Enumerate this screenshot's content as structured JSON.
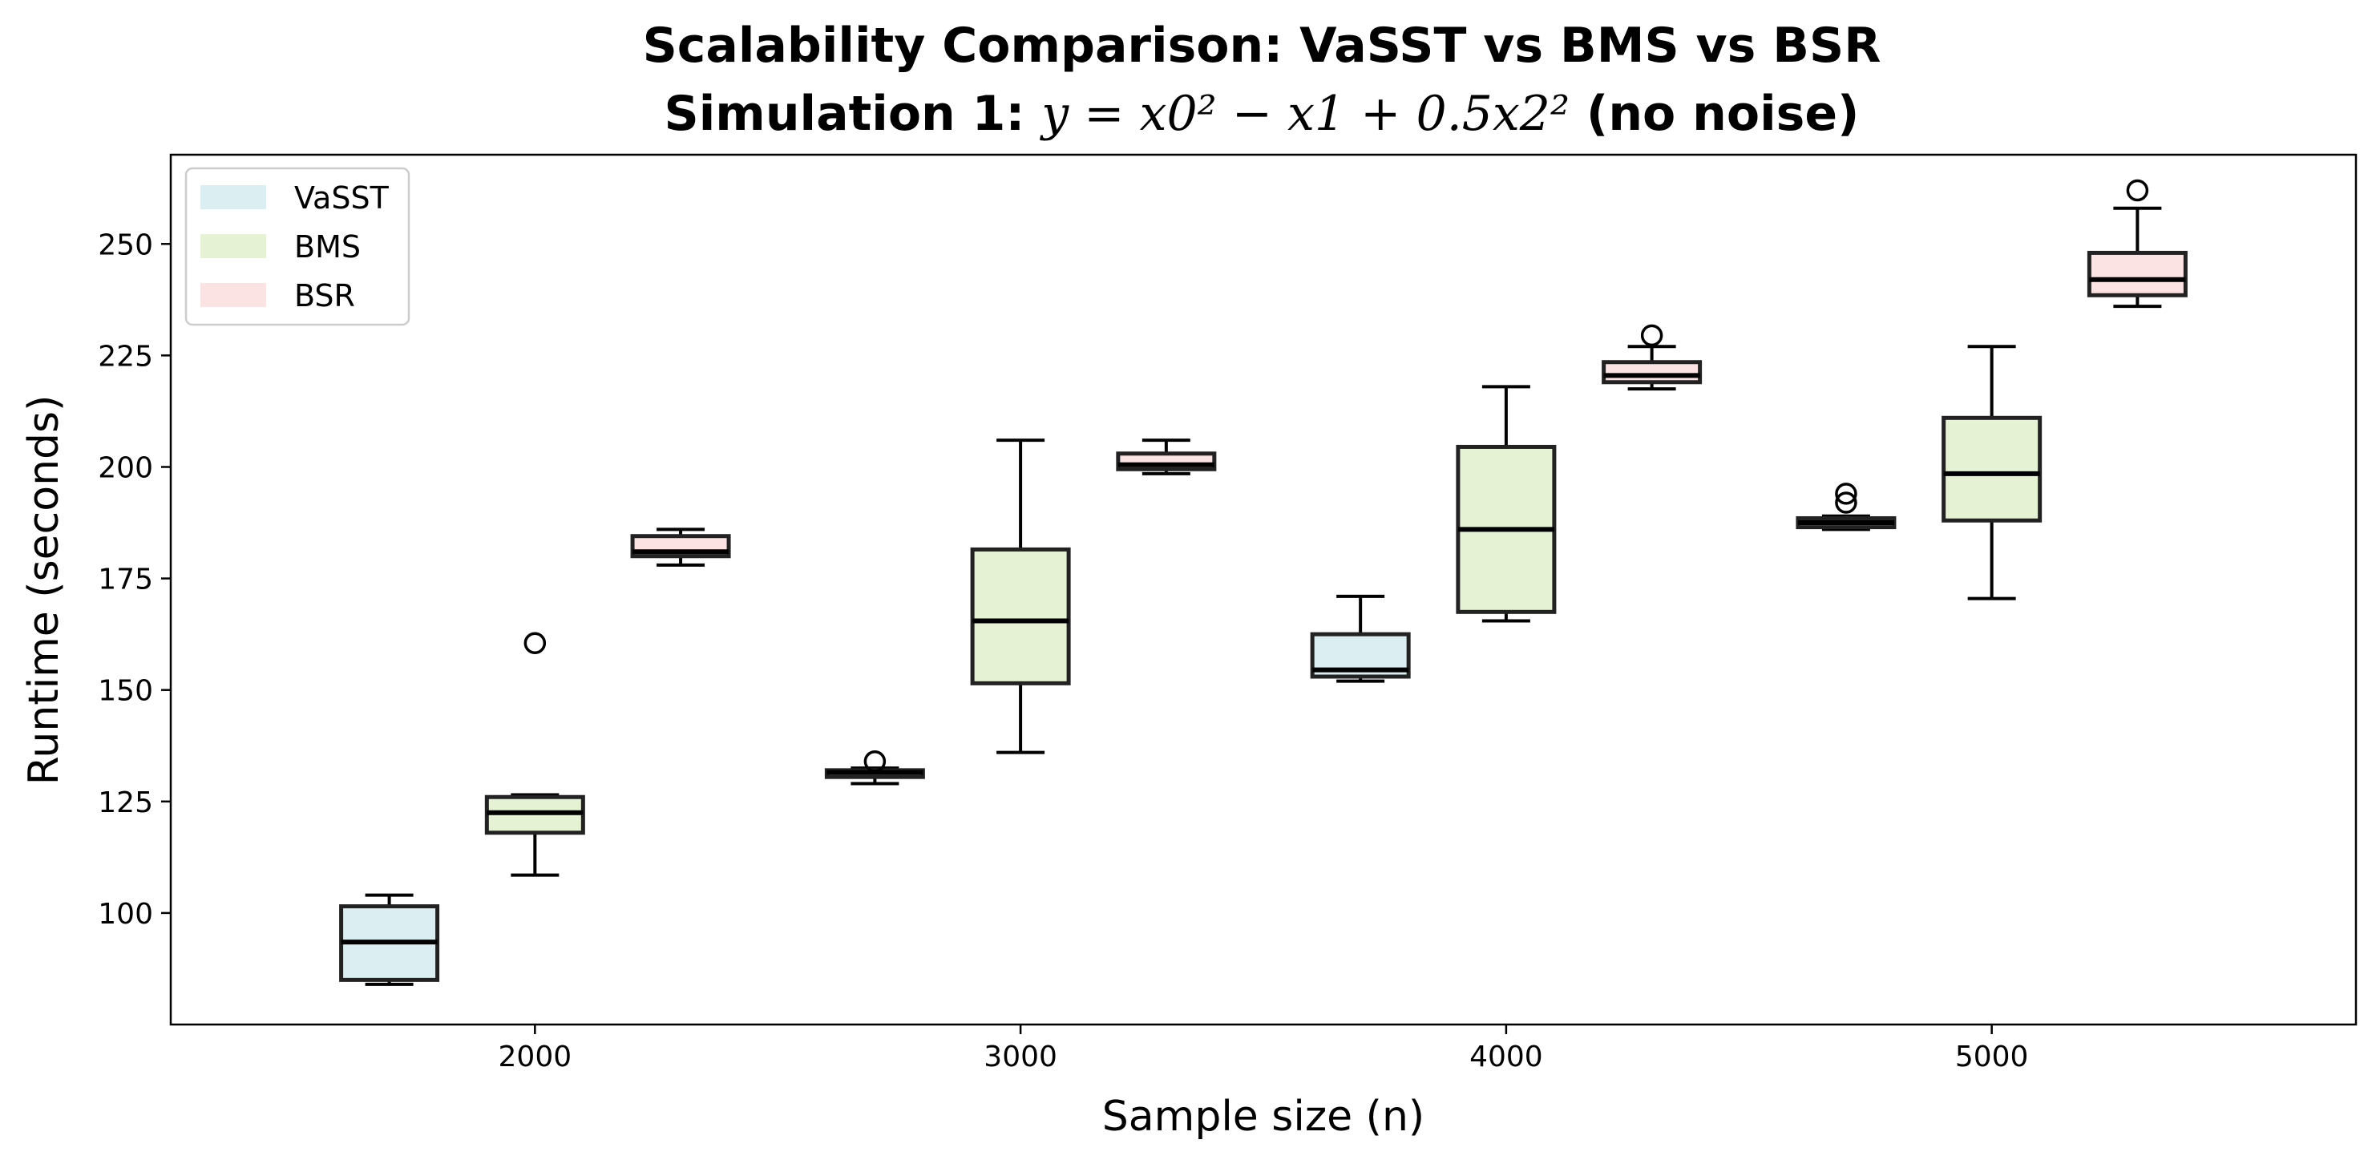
{
  "chart_data": {
    "type": "boxplot",
    "title_line1": "Scalability Comparison: VaSST vs BMS vs BSR",
    "title_line2": {
      "prefix": "Simulation 1: ",
      "equation": "y = x0² − x1 + 0.5x2²",
      "suffix": " (no noise)"
    },
    "xlabel": "Sample size (n)",
    "ylabel": "Runtime (seconds)",
    "categories": [
      "2000",
      "3000",
      "4000",
      "5000"
    ],
    "xlim": [
      1250,
      5750
    ],
    "ylim": [
      75,
      270
    ],
    "yticks": [
      100,
      125,
      150,
      175,
      200,
      225,
      250
    ],
    "legend_position": "upper-left",
    "series": [
      {
        "name": "VaSST",
        "color": "#dbeef2",
        "boxes": [
          {
            "n": 2000,
            "whisker_low": 84,
            "q1": 85,
            "median": 93.5,
            "q3": 101.5,
            "whisker_high": 104,
            "outliers": []
          },
          {
            "n": 3000,
            "whisker_low": 129,
            "q1": 130.5,
            "median": 131.5,
            "q3": 132,
            "whisker_high": 132.5,
            "outliers": [
              134
            ]
          },
          {
            "n": 4000,
            "whisker_low": 152,
            "q1": 153,
            "median": 154.5,
            "q3": 162.5,
            "whisker_high": 171,
            "outliers": []
          },
          {
            "n": 5000,
            "whisker_low": 186,
            "q1": 186.5,
            "median": 187.5,
            "q3": 188.5,
            "whisker_high": 189,
            "outliers": [
              192,
              194
            ]
          }
        ]
      },
      {
        "name": "BMS",
        "color": "#e5f2d4",
        "boxes": [
          {
            "n": 2000,
            "whisker_low": 108.5,
            "q1": 118,
            "median": 122.5,
            "q3": 126,
            "whisker_high": 126.5,
            "outliers": [
              160.5
            ]
          },
          {
            "n": 3000,
            "whisker_low": 136,
            "q1": 151.5,
            "median": 165.5,
            "q3": 181.5,
            "whisker_high": 206,
            "outliers": []
          },
          {
            "n": 4000,
            "whisker_low": 165.5,
            "q1": 167.5,
            "median": 186,
            "q3": 204.5,
            "whisker_high": 218,
            "outliers": []
          },
          {
            "n": 5000,
            "whisker_low": 170.5,
            "q1": 188,
            "median": 198.5,
            "q3": 211,
            "whisker_high": 227,
            "outliers": []
          }
        ]
      },
      {
        "name": "BSR",
        "color": "#fbe3e4",
        "boxes": [
          {
            "n": 2000,
            "whisker_low": 178,
            "q1": 180,
            "median": 181,
            "q3": 184.5,
            "whisker_high": 186,
            "outliers": []
          },
          {
            "n": 3000,
            "whisker_low": 198.5,
            "q1": 199.5,
            "median": 200.5,
            "q3": 203,
            "whisker_high": 206,
            "outliers": []
          },
          {
            "n": 4000,
            "whisker_low": 217.5,
            "q1": 219,
            "median": 220.5,
            "q3": 223.5,
            "whisker_high": 227,
            "outliers": [
              229.5
            ]
          },
          {
            "n": 5000,
            "whisker_low": 236,
            "q1": 238.5,
            "median": 242,
            "q3": 248,
            "whisker_high": 258,
            "outliers": [
              262
            ]
          }
        ]
      }
    ]
  }
}
